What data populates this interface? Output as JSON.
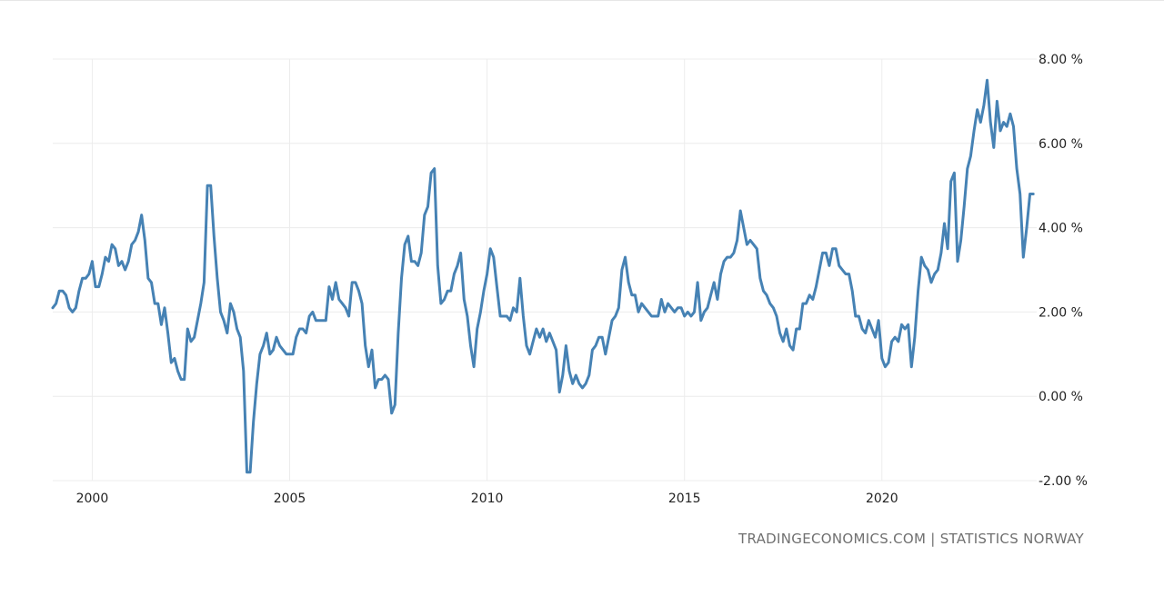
{
  "source_text": "TRADINGECONOMICS.COM | STATISTICS NORWAY",
  "colors": {
    "line": "#4682b4",
    "grid": "#ececec",
    "text": "#222222",
    "source": "#707070"
  },
  "chart_data": {
    "type": "line",
    "x_start_year": 1999.0,
    "x_step": 0.08333,
    "xlim": [
      1999.0,
      2023.92
    ],
    "ylim": [
      -2,
      8
    ],
    "x_ticks": [
      2000,
      2005,
      2010,
      2015,
      2020
    ],
    "x_tick_labels": [
      "2000",
      "2005",
      "2010",
      "2015",
      "2020"
    ],
    "y_ticks": [
      -2,
      0,
      2,
      4,
      6,
      8
    ],
    "y_tick_labels": [
      "-2.00 %",
      "0.00 %",
      "2.00 %",
      "4.00 %",
      "6.00 %",
      "8.00 %"
    ],
    "grid": true,
    "values": [
      2.1,
      2.2,
      2.5,
      2.5,
      2.4,
      2.1,
      2.0,
      2.1,
      2.5,
      2.8,
      2.8,
      2.9,
      3.2,
      2.6,
      2.6,
      2.9,
      3.3,
      3.2,
      3.6,
      3.5,
      3.1,
      3.2,
      3.0,
      3.2,
      3.6,
      3.7,
      3.9,
      4.3,
      3.7,
      2.8,
      2.7,
      2.2,
      2.2,
      1.7,
      2.1,
      1.5,
      0.8,
      0.9,
      0.6,
      0.4,
      0.4,
      1.6,
      1.3,
      1.4,
      1.8,
      2.2,
      2.7,
      5.0,
      5.0,
      3.8,
      2.8,
      2.0,
      1.8,
      1.5,
      2.2,
      2.0,
      1.6,
      1.4,
      0.6,
      -1.8,
      -1.8,
      -0.6,
      0.3,
      1.0,
      1.2,
      1.5,
      1.0,
      1.1,
      1.4,
      1.2,
      1.1,
      1.0,
      1.0,
      1.0,
      1.4,
      1.6,
      1.6,
      1.5,
      1.9,
      2.0,
      1.8,
      1.8,
      1.8,
      1.8,
      2.6,
      2.3,
      2.7,
      2.3,
      2.2,
      2.1,
      1.9,
      2.7,
      2.7,
      2.5,
      2.2,
      1.2,
      0.7,
      1.1,
      0.2,
      0.4,
      0.4,
      0.5,
      0.4,
      -0.4,
      -0.2,
      1.5,
      2.8,
      3.6,
      3.8,
      3.2,
      3.2,
      3.1,
      3.4,
      4.3,
      4.5,
      5.3,
      5.4,
      3.1,
      2.2,
      2.3,
      2.5,
      2.5,
      2.9,
      3.1,
      3.4,
      2.3,
      1.9,
      1.2,
      0.7,
      1.6,
      2.0,
      2.5,
      2.9,
      3.5,
      3.3,
      2.6,
      1.9,
      1.9,
      1.9,
      1.8,
      2.1,
      2.0,
      2.8,
      1.9,
      1.2,
      1.0,
      1.3,
      1.6,
      1.4,
      1.6,
      1.3,
      1.5,
      1.3,
      1.1,
      0.1,
      0.5,
      1.2,
      0.6,
      0.3,
      0.5,
      0.3,
      0.2,
      0.3,
      0.5,
      1.1,
      1.2,
      1.4,
      1.4,
      1.0,
      1.4,
      1.8,
      1.9,
      2.1,
      3.0,
      3.3,
      2.7,
      2.4,
      2.4,
      2.0,
      2.2,
      2.1,
      2.0,
      1.9,
      1.9,
      1.9,
      2.3,
      2.0,
      2.2,
      2.1,
      2.0,
      2.1,
      2.1,
      1.9,
      2.0,
      1.9,
      2.0,
      2.7,
      1.8,
      2.0,
      2.1,
      2.4,
      2.7,
      2.3,
      2.9,
      3.2,
      3.3,
      3.3,
      3.4,
      3.7,
      4.4,
      4.0,
      3.6,
      3.7,
      3.6,
      3.5,
      2.8,
      2.5,
      2.4,
      2.2,
      2.1,
      1.9,
      1.5,
      1.3,
      1.6,
      1.2,
      1.1,
      1.6,
      1.6,
      2.2,
      2.2,
      2.4,
      2.3,
      2.6,
      3.0,
      3.4,
      3.4,
      3.1,
      3.5,
      3.5,
      3.1,
      3.0,
      2.9,
      2.9,
      2.5,
      1.9,
      1.9,
      1.6,
      1.5,
      1.8,
      1.6,
      1.4,
      1.8,
      0.9,
      0.7,
      0.8,
      1.3,
      1.4,
      1.3,
      1.7,
      1.6,
      1.7,
      0.7,
      1.4,
      2.5,
      3.3,
      3.1,
      3.0,
      2.7,
      2.9,
      3.0,
      3.4,
      4.1,
      3.5,
      5.1,
      5.3,
      3.2,
      3.7,
      4.5,
      5.4,
      5.7,
      6.3,
      6.8,
      6.5,
      6.9,
      7.5,
      6.5,
      5.9,
      7.0,
      6.3,
      6.5,
      6.4,
      6.7,
      6.4,
      5.4,
      4.8,
      3.3,
      4.0,
      4.8,
      4.8
    ]
  }
}
